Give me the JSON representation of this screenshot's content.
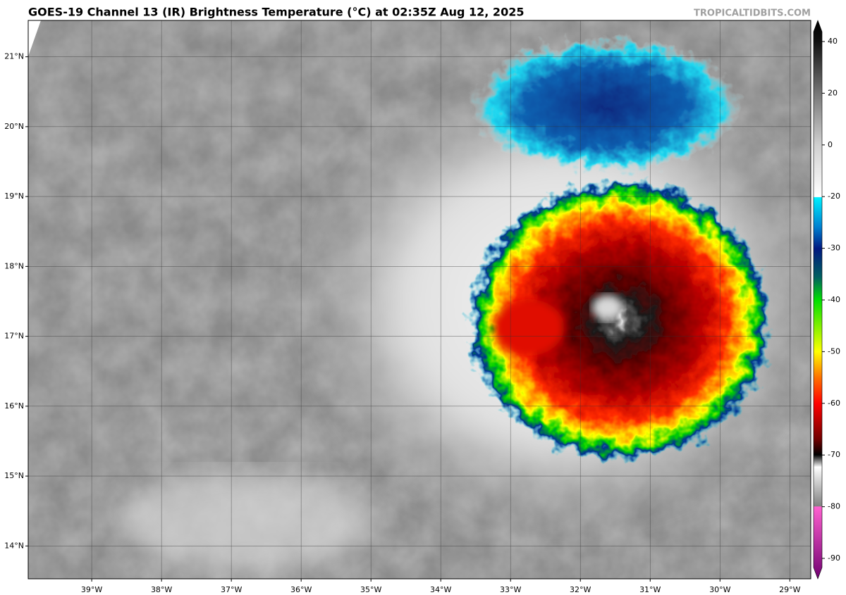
{
  "title": "GOES-19 Channel 13 (IR) Brightness Temperature (°C) at 02:35Z Aug 12, 2025",
  "credit": "TROPICALTIDBITS.COM",
  "map": {
    "xlim": [
      -39.91,
      -28.7
    ],
    "ylim": [
      13.53,
      21.52
    ],
    "xticks": [
      {
        "value": -39,
        "label": "39°W"
      },
      {
        "value": -38,
        "label": "38°W"
      },
      {
        "value": -37,
        "label": "37°W"
      },
      {
        "value": -36,
        "label": "36°W"
      },
      {
        "value": -35,
        "label": "35°W"
      },
      {
        "value": -34,
        "label": "34°W"
      },
      {
        "value": -33,
        "label": "33°W"
      },
      {
        "value": -32,
        "label": "32°W"
      },
      {
        "value": -31,
        "label": "31°W"
      },
      {
        "value": -30,
        "label": "30°W"
      },
      {
        "value": -29,
        "label": "29°W"
      }
    ],
    "yticks": [
      {
        "value": 21,
        "label": "21°N"
      },
      {
        "value": 20,
        "label": "20°N"
      },
      {
        "value": 19,
        "label": "19°N"
      },
      {
        "value": 18,
        "label": "18°N"
      },
      {
        "value": 17,
        "label": "17°N"
      },
      {
        "value": 16,
        "label": "16°N"
      },
      {
        "value": 15,
        "label": "15°N"
      },
      {
        "value": 14,
        "label": "14°N"
      }
    ],
    "grid": true
  },
  "colorbar": {
    "ticks": [
      40,
      20,
      0,
      -20,
      -30,
      -40,
      -50,
      -60,
      -70,
      -80,
      -90
    ]
  }
}
